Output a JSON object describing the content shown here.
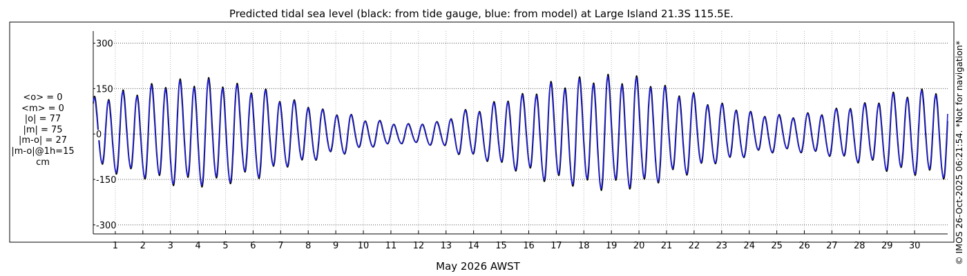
{
  "chart_data": {
    "type": "line",
    "title": "Predicted tidal sea level (black: from tide gauge, blue: from model) at Large Island 21.3S 115.5E.",
    "xlabel": "May 2026 AWST",
    "ylabel": "",
    "ylim": [
      -330,
      340
    ],
    "yticks": [
      300,
      150,
      0,
      -150,
      -300
    ],
    "ytick_labels": [
      "300",
      "150",
      "0",
      "-150",
      "-300"
    ],
    "xlim": [
      0.2,
      31.2
    ],
    "xticks": [
      1,
      2,
      3,
      4,
      5,
      6,
      7,
      8,
      9,
      10,
      11,
      12,
      13,
      14,
      15,
      16,
      17,
      18,
      19,
      20,
      21,
      22,
      23,
      24,
      25,
      26,
      27,
      28,
      29,
      30
    ],
    "xtick_labels": [
      "1",
      "2",
      "3",
      "4",
      "5",
      "6",
      "7",
      "8",
      "9",
      "10",
      "11",
      "12",
      "13",
      "14",
      "15",
      "16",
      "17",
      "18",
      "19",
      "20",
      "21",
      "22",
      "23",
      "24",
      "25",
      "26",
      "27",
      "28",
      "29",
      "30"
    ],
    "grid": true,
    "series": [
      {
        "name": "from tide gauge",
        "color": "#000000",
        "description_cm": "semi-diurnal tide; springs near May 3-5 (peak ~+165/-170 cm), neaps near May 10-12 (~+/-30 cm), springs near May 18-20 (~+/-175 cm), neaps near May 25-26"
      },
      {
        "name": "from model",
        "color": "#1f1fd6"
      }
    ],
    "envelope_cm": {
      "day": [
        0.2,
        1.5,
        3.0,
        4.5,
        6.0,
        7.5,
        9.0,
        10.5,
        11.5,
        12.5,
        14.0,
        15.5,
        17.0,
        18.5,
        20.0,
        21.5,
        23.0,
        24.5,
        25.5,
        26.5,
        28.0,
        29.5,
        31.2
      ],
      "amplitude": [
        110,
        130,
        160,
        165,
        140,
        100,
        65,
        40,
        30,
        35,
        75,
        115,
        155,
        175,
        170,
        130,
        90,
        60,
        55,
        65,
        90,
        125,
        140
      ]
    }
  },
  "stats_lines": [
    "<o> = 0",
    "<m> = 0",
    "|o| = 77",
    "|m| = 75",
    "|m-o| = 27",
    "|m-o|@1h=15",
    "cm"
  ],
  "credit": "© IMOS 26-Oct-2025 06:21:54. *Not for navigation*"
}
